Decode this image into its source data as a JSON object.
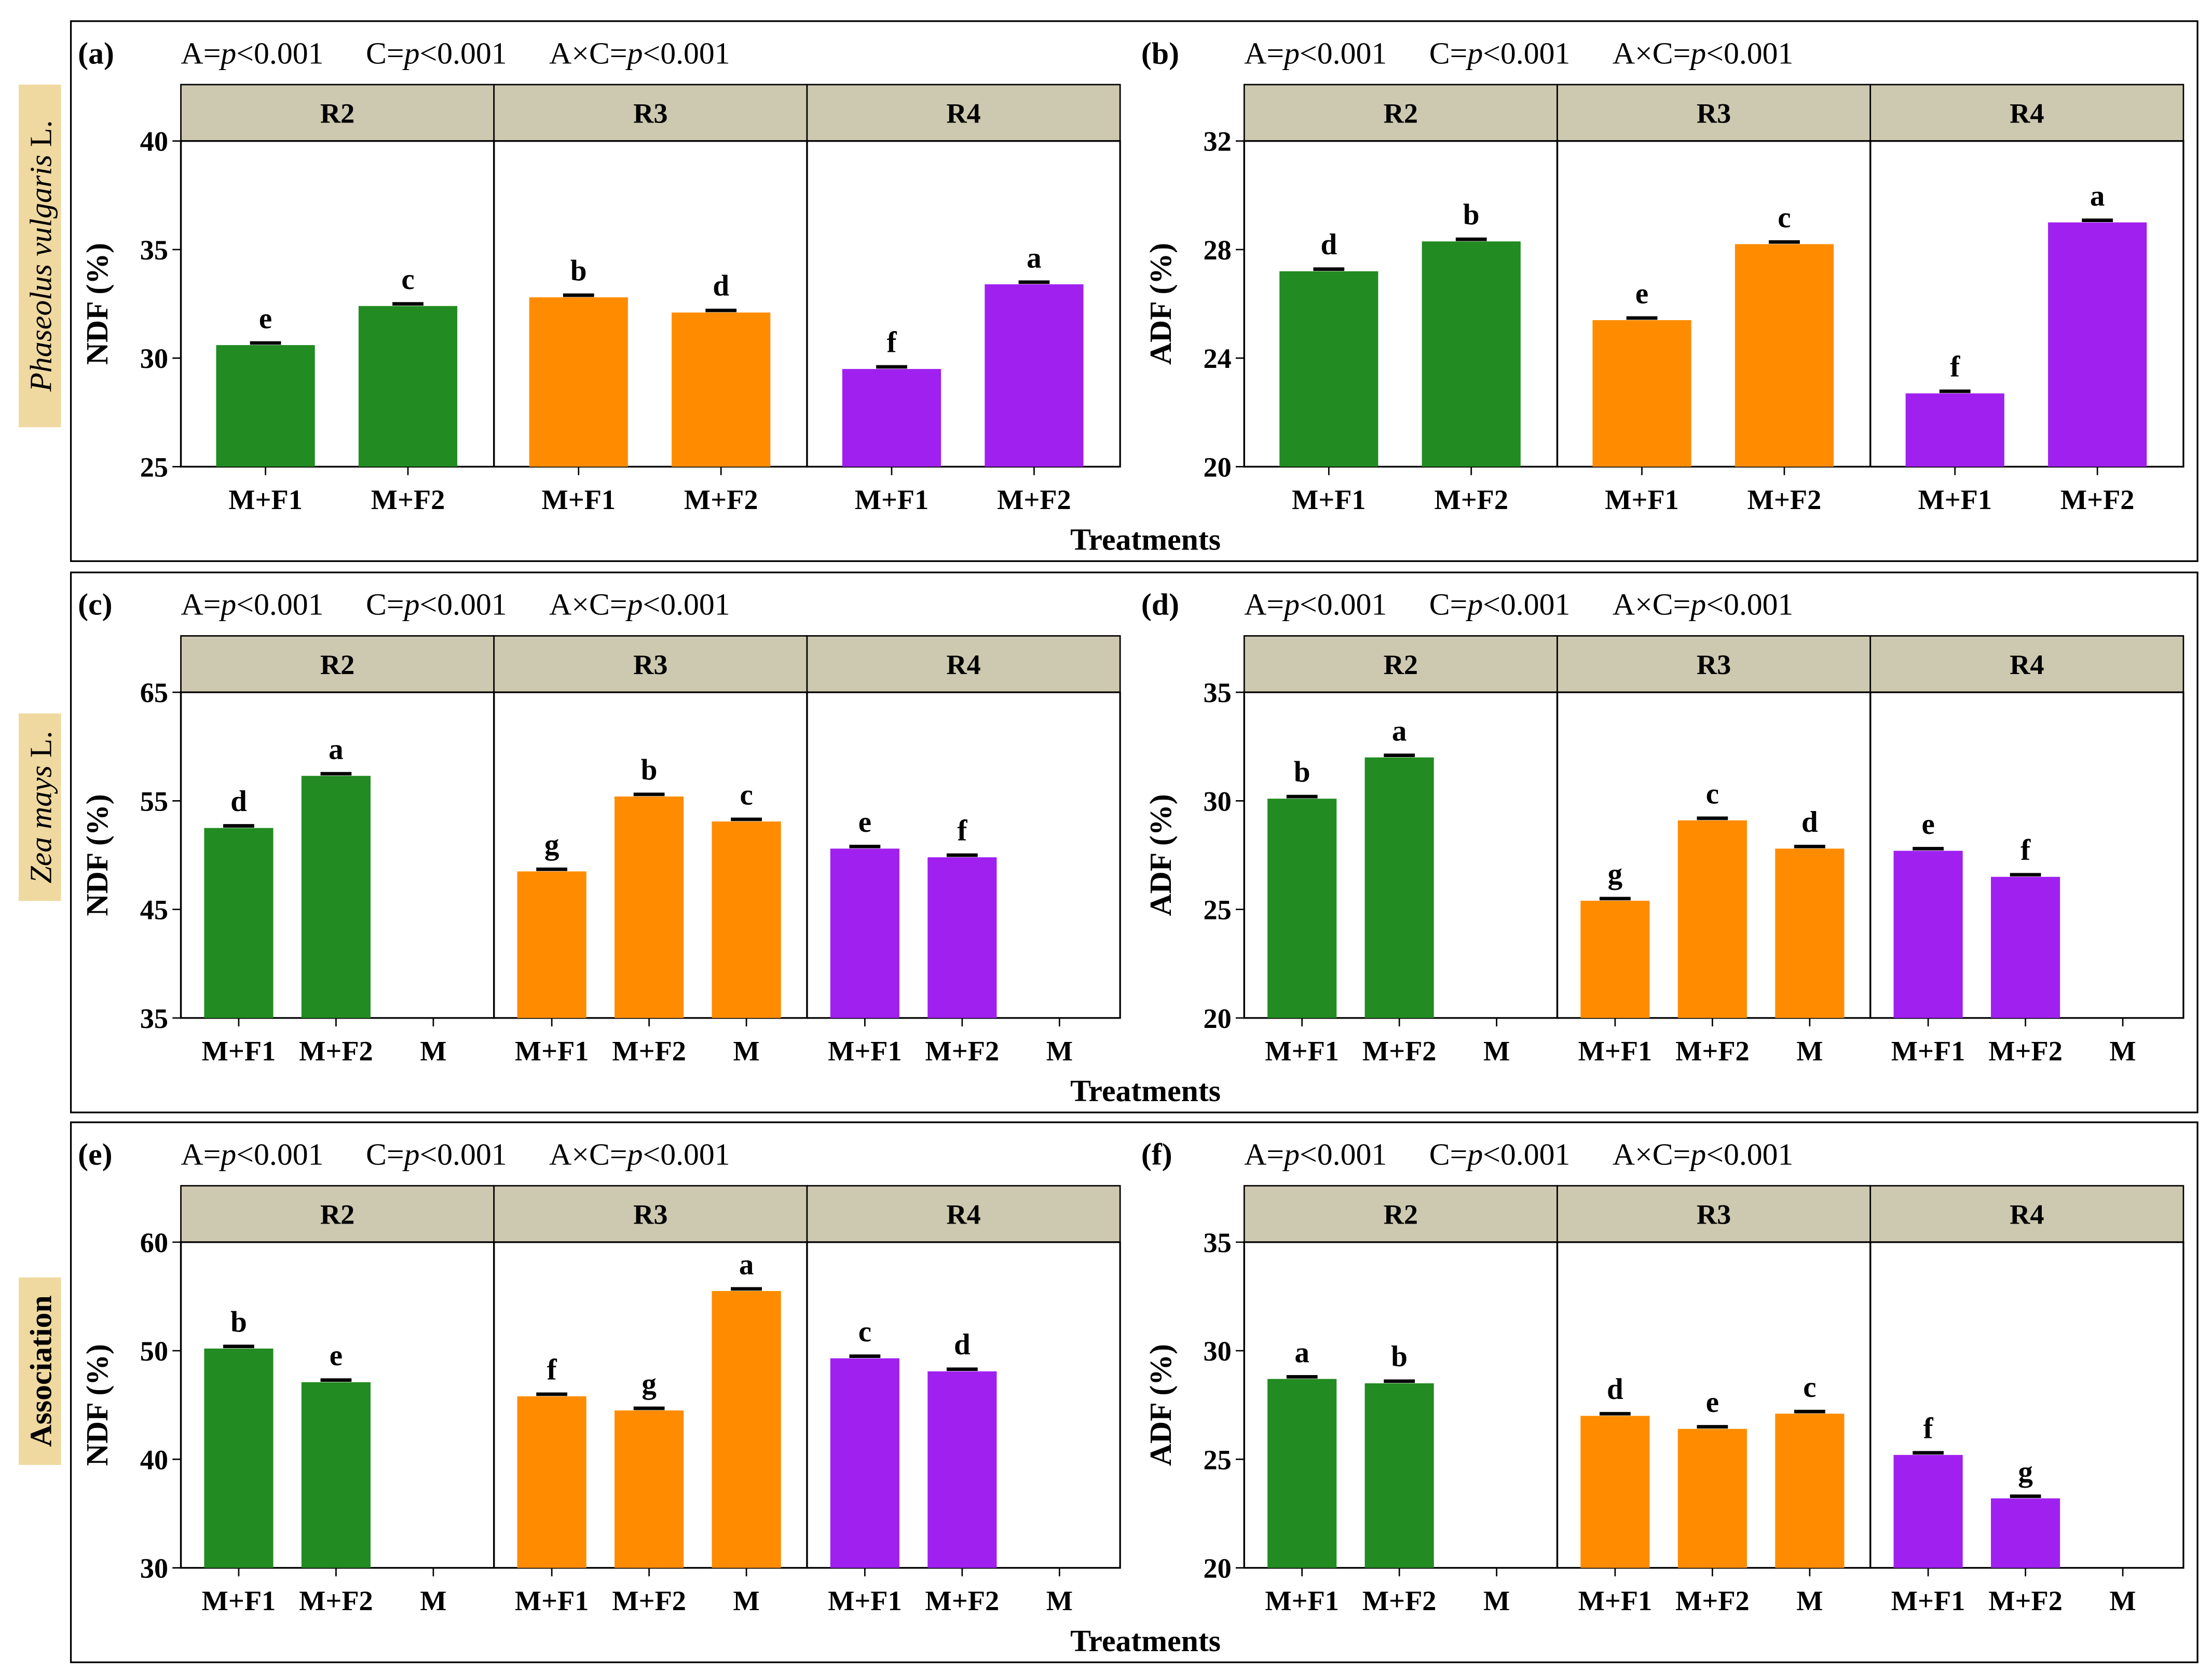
{
  "colors": {
    "R2": "#228b22",
    "R3": "#ff8c00",
    "R4": "#a020f0",
    "strip": "#cdc8b0",
    "rowlabel": "#f0d9a0"
  },
  "xlabel": "Treatments",
  "rows": [
    {
      "label": "Phaseolus vulgaris L.",
      "label_main": "Phaseolus vulgaris",
      "label_suffix": " L.",
      "italic": true
    },
    {
      "label": "Zea mays L.",
      "label_main": "Zea mays",
      "label_suffix": " L.",
      "italic": true
    },
    {
      "label": "Association",
      "label_main": "Association",
      "label_suffix": "",
      "italic": false
    }
  ],
  "chart_data": [
    {
      "type": "bar",
      "panel": "(a)",
      "row": 0,
      "col": 0,
      "stats": [
        "A=p<0.001",
        "C=p<0.001",
        "A×C=p<0.001"
      ],
      "ylabel": "NDF (%)",
      "ylim": [
        25,
        40
      ],
      "yticks": [
        25,
        30,
        35,
        40
      ],
      "facets": [
        {
          "name": "R2",
          "bars": [
            {
              "x": "M+F1",
              "value": 30.6,
              "letter": "e"
            },
            {
              "x": "M+F2",
              "value": 32.4,
              "letter": "c"
            }
          ]
        },
        {
          "name": "R3",
          "bars": [
            {
              "x": "M+F1",
              "value": 32.8,
              "letter": "b"
            },
            {
              "x": "M+F2",
              "value": 32.1,
              "letter": "d"
            }
          ]
        },
        {
          "name": "R4",
          "bars": [
            {
              "x": "M+F1",
              "value": 29.5,
              "letter": "f"
            },
            {
              "x": "M+F2",
              "value": 33.4,
              "letter": "a"
            }
          ]
        }
      ]
    },
    {
      "type": "bar",
      "panel": "(b)",
      "row": 0,
      "col": 1,
      "stats": [
        "A=p<0.001",
        "C=p<0.001",
        "A×C=p<0.001"
      ],
      "ylabel": "ADF (%)",
      "ylim": [
        20,
        32
      ],
      "yticks": [
        20,
        24,
        28,
        32
      ],
      "facets": [
        {
          "name": "R2",
          "bars": [
            {
              "x": "M+F1",
              "value": 27.2,
              "letter": "d"
            },
            {
              "x": "M+F2",
              "value": 28.3,
              "letter": "b"
            }
          ]
        },
        {
          "name": "R3",
          "bars": [
            {
              "x": "M+F1",
              "value": 25.4,
              "letter": "e"
            },
            {
              "x": "M+F2",
              "value": 28.2,
              "letter": "c"
            }
          ]
        },
        {
          "name": "R4",
          "bars": [
            {
              "x": "M+F1",
              "value": 22.7,
              "letter": "f"
            },
            {
              "x": "M+F2",
              "value": 29.0,
              "letter": "a"
            }
          ]
        }
      ]
    },
    {
      "type": "bar",
      "panel": "(c)",
      "row": 1,
      "col": 0,
      "stats": [
        "A=p<0.001",
        "C=p<0.001",
        "A×C=p<0.001"
      ],
      "ylabel": "NDF (%)",
      "ylim": [
        35,
        65
      ],
      "yticks": [
        35,
        45,
        55,
        65
      ],
      "facets": [
        {
          "name": "R2",
          "bars": [
            {
              "x": "M+F1",
              "value": 52.5,
              "letter": "d"
            },
            {
              "x": "M+F2",
              "value": 57.3,
              "letter": "a"
            },
            {
              "x": "M",
              "value": null,
              "letter": ""
            }
          ]
        },
        {
          "name": "R3",
          "bars": [
            {
              "x": "M+F1",
              "value": 48.5,
              "letter": "g"
            },
            {
              "x": "M+F2",
              "value": 55.4,
              "letter": "b"
            },
            {
              "x": "M",
              "value": 53.1,
              "letter": "c"
            }
          ]
        },
        {
          "name": "R4",
          "bars": [
            {
              "x": "M+F1",
              "value": 50.6,
              "letter": "e"
            },
            {
              "x": "M+F2",
              "value": 49.8,
              "letter": "f"
            },
            {
              "x": "M",
              "value": null,
              "letter": ""
            }
          ]
        }
      ]
    },
    {
      "type": "bar",
      "panel": "(d)",
      "row": 1,
      "col": 1,
      "stats": [
        "A=p<0.001",
        "C=p<0.001",
        "A×C=p<0.001"
      ],
      "ylabel": "ADF (%)",
      "ylim": [
        20,
        35
      ],
      "yticks": [
        20,
        25,
        30,
        35
      ],
      "facets": [
        {
          "name": "R2",
          "bars": [
            {
              "x": "M+F1",
              "value": 30.1,
              "letter": "b"
            },
            {
              "x": "M+F2",
              "value": 32.0,
              "letter": "a"
            },
            {
              "x": "M",
              "value": null,
              "letter": ""
            }
          ]
        },
        {
          "name": "R3",
          "bars": [
            {
              "x": "M+F1",
              "value": 25.4,
              "letter": "g"
            },
            {
              "x": "M+F2",
              "value": 29.1,
              "letter": "c"
            },
            {
              "x": "M",
              "value": 27.8,
              "letter": "d"
            }
          ]
        },
        {
          "name": "R4",
          "bars": [
            {
              "x": "M+F1",
              "value": 27.7,
              "letter": "e"
            },
            {
              "x": "M+F2",
              "value": 26.5,
              "letter": "f"
            },
            {
              "x": "M",
              "value": null,
              "letter": ""
            }
          ]
        }
      ]
    },
    {
      "type": "bar",
      "panel": "(e)",
      "row": 2,
      "col": 0,
      "stats": [
        "A=p<0.001",
        "C=p<0.001",
        "A×C=p<0.001"
      ],
      "ylabel": "NDF (%)",
      "ylim": [
        30,
        60
      ],
      "yticks": [
        30,
        40,
        50,
        60
      ],
      "facets": [
        {
          "name": "R2",
          "bars": [
            {
              "x": "M+F1",
              "value": 50.2,
              "letter": "b"
            },
            {
              "x": "M+F2",
              "value": 47.1,
              "letter": "e"
            },
            {
              "x": "M",
              "value": null,
              "letter": ""
            }
          ]
        },
        {
          "name": "R3",
          "bars": [
            {
              "x": "M+F1",
              "value": 45.8,
              "letter": "f"
            },
            {
              "x": "M+F2",
              "value": 44.5,
              "letter": "g"
            },
            {
              "x": "M",
              "value": 55.5,
              "letter": "a"
            }
          ]
        },
        {
          "name": "R4",
          "bars": [
            {
              "x": "M+F1",
              "value": 49.3,
              "letter": "c"
            },
            {
              "x": "M+F2",
              "value": 48.1,
              "letter": "d"
            },
            {
              "x": "M",
              "value": null,
              "letter": ""
            }
          ]
        }
      ]
    },
    {
      "type": "bar",
      "panel": "(f)",
      "row": 2,
      "col": 1,
      "stats": [
        "A=p<0.001",
        "C=p<0.001",
        "A×C=p<0.001"
      ],
      "ylabel": "ADF (%)",
      "ylim": [
        20,
        35
      ],
      "yticks": [
        20,
        25,
        30,
        35
      ],
      "facets": [
        {
          "name": "R2",
          "bars": [
            {
              "x": "M+F1",
              "value": 28.7,
              "letter": "a"
            },
            {
              "x": "M+F2",
              "value": 28.5,
              "letter": "b"
            },
            {
              "x": "M",
              "value": null,
              "letter": ""
            }
          ]
        },
        {
          "name": "R3",
          "bars": [
            {
              "x": "M+F1",
              "value": 27.0,
              "letter": "d"
            },
            {
              "x": "M+F2",
              "value": 26.4,
              "letter": "e"
            },
            {
              "x": "M",
              "value": 27.1,
              "letter": "c"
            }
          ]
        },
        {
          "name": "R4",
          "bars": [
            {
              "x": "M+F1",
              "value": 25.2,
              "letter": "f"
            },
            {
              "x": "M+F2",
              "value": 23.2,
              "letter": "g"
            },
            {
              "x": "M",
              "value": null,
              "letter": ""
            }
          ]
        }
      ]
    }
  ]
}
